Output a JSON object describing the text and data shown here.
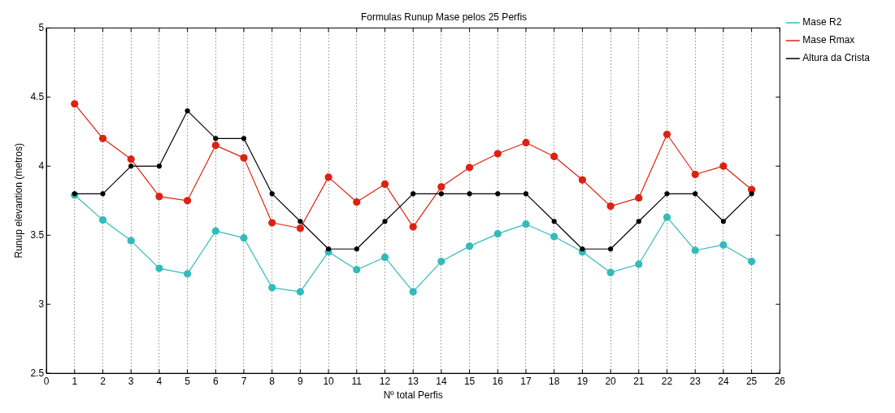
{
  "chart_data": {
    "type": "line",
    "title": "Formulas Runup Mase pelos 25 Perfis",
    "xlabel": "Nº total Perfis",
    "ylabel": "Runup elevantion (metros)",
    "x": [
      1,
      2,
      3,
      4,
      5,
      6,
      7,
      8,
      9,
      10,
      11,
      12,
      13,
      14,
      15,
      16,
      17,
      18,
      19,
      20,
      21,
      22,
      23,
      24,
      25
    ],
    "series": [
      {
        "name": "Mase R2",
        "color": "#33bbbb",
        "values": [
          3.79,
          3.61,
          3.46,
          3.26,
          3.22,
          3.53,
          3.48,
          3.12,
          3.09,
          3.38,
          3.25,
          3.34,
          3.09,
          3.31,
          3.42,
          3.51,
          3.58,
          3.49,
          3.38,
          3.23,
          3.29,
          3.63,
          3.39,
          3.43,
          3.31
        ]
      },
      {
        "name": "Mase Rmax",
        "color": "#dd2211",
        "values": [
          4.45,
          4.2,
          4.05,
          3.78,
          3.75,
          4.15,
          4.06,
          3.59,
          3.55,
          3.92,
          3.74,
          3.87,
          3.56,
          3.85,
          3.99,
          4.09,
          4.17,
          4.07,
          3.9,
          3.71,
          3.77,
          4.23,
          3.94,
          4.0,
          3.83
        ]
      },
      {
        "name": "Altura da Crista",
        "color": "#000000",
        "values": [
          3.8,
          3.8,
          4.0,
          4.0,
          4.4,
          4.2,
          4.2,
          3.8,
          3.6,
          3.4,
          3.4,
          3.6,
          3.8,
          3.8,
          3.8,
          3.8,
          3.8,
          3.6,
          3.4,
          3.4,
          3.6,
          3.8,
          3.8,
          3.6,
          3.8
        ]
      }
    ],
    "xlim": [
      0,
      26
    ],
    "xticks": [
      0,
      1,
      2,
      3,
      4,
      5,
      6,
      7,
      8,
      9,
      10,
      11,
      12,
      13,
      14,
      15,
      16,
      17,
      18,
      19,
      20,
      21,
      22,
      23,
      24,
      25,
      26
    ],
    "ylim": [
      2.5,
      5
    ],
    "yticks": [
      2.5,
      3,
      3.5,
      4,
      4.5,
      5
    ],
    "grid": "x",
    "legend": "top right",
    "marker": "circle",
    "line_style": "solid"
  }
}
